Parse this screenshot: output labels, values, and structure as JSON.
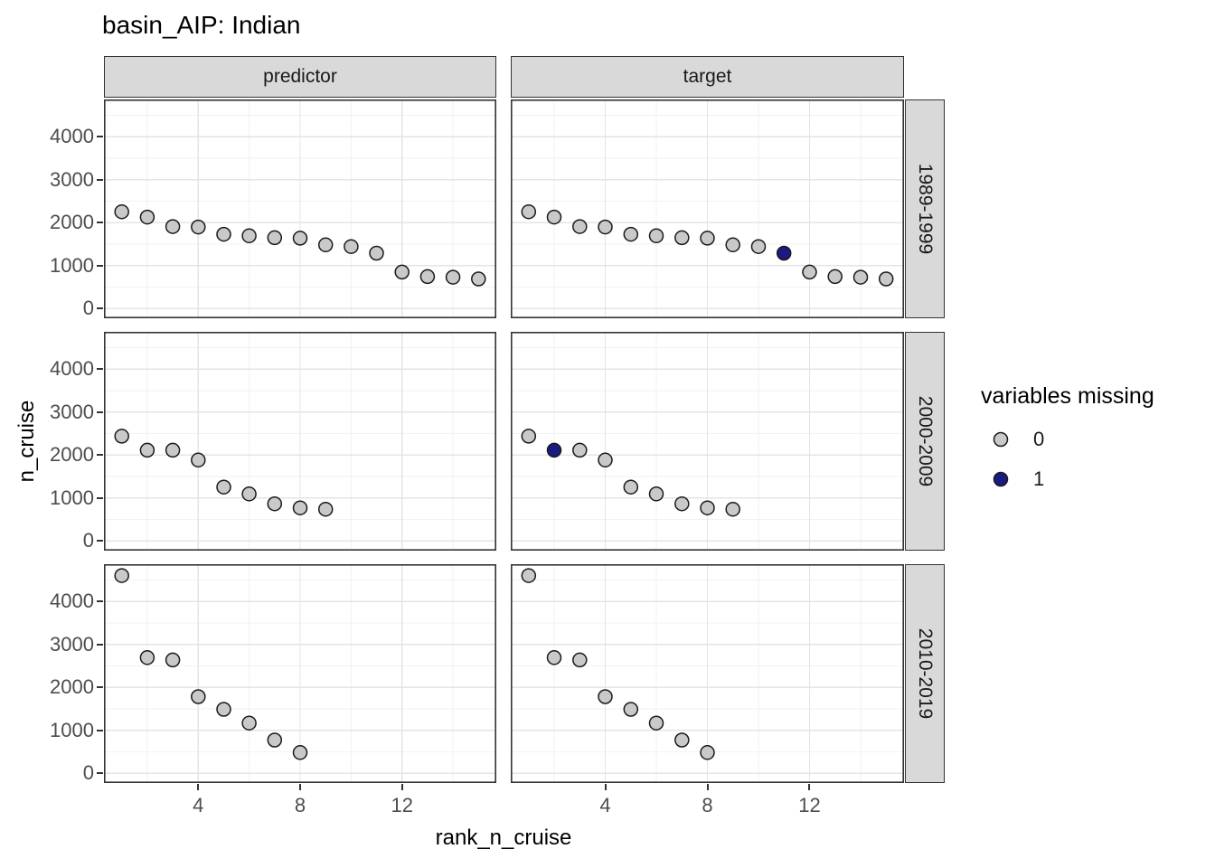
{
  "chart_data": {
    "type": "scatter",
    "title": "basin_AIP: Indian",
    "xlabel": "rank_n_cruise",
    "ylabel": "n_cruise",
    "facet_cols": [
      "predictor",
      "target"
    ],
    "facet_rows": [
      "1989-1999",
      "2000-2009",
      "2010-2019"
    ],
    "x_ticks": [
      4,
      8,
      12
    ],
    "y_ticks": [
      0,
      1000,
      2000,
      3000,
      4000
    ],
    "x_domain": [
      0.3,
      15.7
    ],
    "y_domain": [
      -230,
      4865
    ],
    "grid": true,
    "legend": {
      "title": "variables missing",
      "position": "right",
      "entries": [
        {
          "label": "0",
          "fill": "#c9c9c9"
        },
        {
          "label": "1",
          "fill": "#1a1a80"
        }
      ]
    },
    "colors": {
      "point_fill_0": "#c9c9c9",
      "point_fill_1": "#1a1a80",
      "point_stroke": "#1a1a1a",
      "strip_bg": "#d9d9d9",
      "panel_border": "#333333",
      "grid_major": "#e4e4e4",
      "grid_minor": "#f2f2f2",
      "tick_text": "#4d4d4d"
    },
    "rows": [
      {
        "label": "1989-1999",
        "ranks": [
          1,
          2,
          3,
          4,
          5,
          6,
          7,
          8,
          9,
          10,
          11,
          12,
          13,
          14,
          15
        ],
        "values": [
          2250,
          2125,
          1905,
          1895,
          1725,
          1690,
          1645,
          1635,
          1480,
          1440,
          1285,
          845,
          740,
          725,
          685
        ],
        "missing_ranks": {
          "predictor": [],
          "target": [
            11
          ]
        }
      },
      {
        "label": "2000-2009",
        "ranks": [
          1,
          2,
          3,
          4,
          5,
          6,
          7,
          8,
          9
        ],
        "values": [
          2435,
          2110,
          2110,
          1880,
          1250,
          1090,
          860,
          765,
          735
        ],
        "missing_ranks": {
          "predictor": [],
          "target": [
            2
          ]
        }
      },
      {
        "label": "2010-2019",
        "ranks": [
          1,
          2,
          3,
          4,
          5,
          6,
          7,
          8
        ],
        "values": [
          4600,
          2690,
          2635,
          1780,
          1485,
          1165,
          770,
          480
        ],
        "missing_ranks": {
          "predictor": [],
          "target": []
        }
      }
    ]
  }
}
